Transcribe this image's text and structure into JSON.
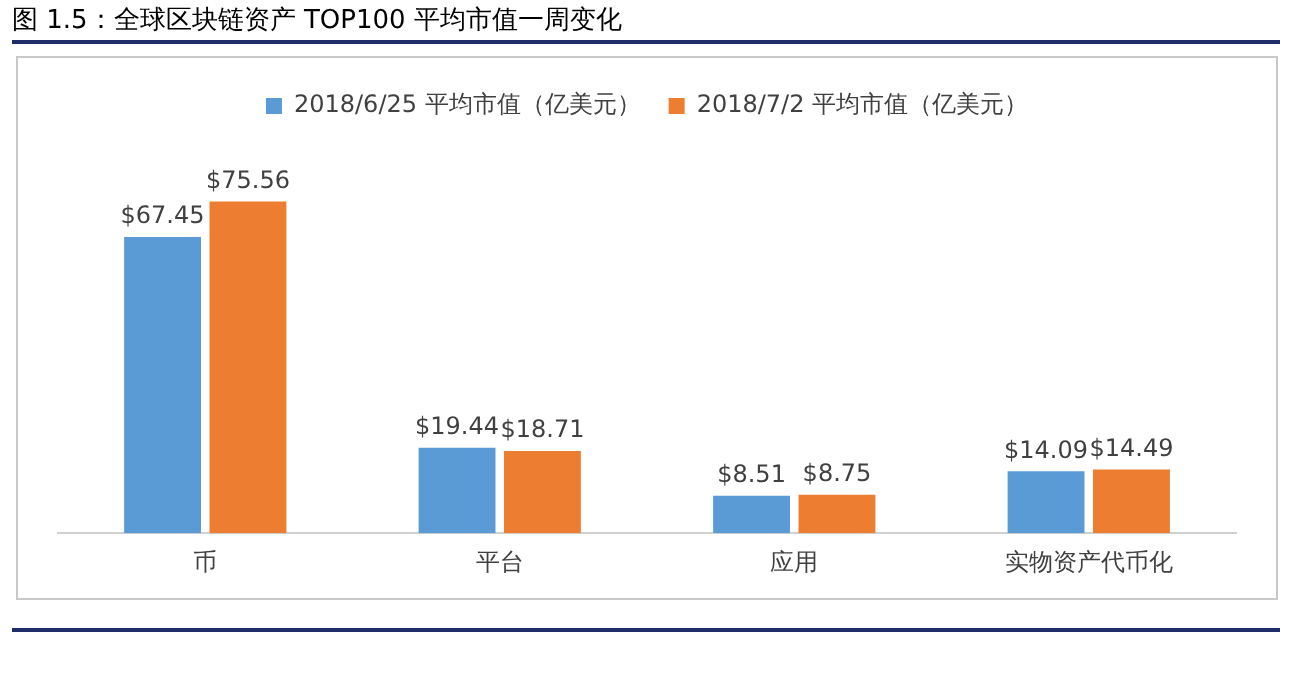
{
  "chart_data": {
    "type": "bar",
    "title": "图 1.5：全球区块链资产 TOP100 平均市值一周变化",
    "categories": [
      "币",
      "平台",
      "应用",
      "实物资产代币化"
    ],
    "series": [
      {
        "name": "2018/6/25 平均市值（亿美元）",
        "color": "#5b9bd5",
        "values": [
          67.45,
          19.44,
          8.51,
          14.09
        ],
        "value_labels": [
          "$67.45",
          "$19.44",
          "$8.51",
          "$14.09"
        ]
      },
      {
        "name": "2018/7/2 平均市值（亿美元）",
        "color": "#ed7d31",
        "values": [
          75.56,
          18.71,
          8.75,
          14.49
        ],
        "value_labels": [
          "$75.56",
          "$18.71",
          "$8.75",
          "$14.49"
        ]
      }
    ],
    "legend": "top",
    "tick_labels": "x"
  }
}
